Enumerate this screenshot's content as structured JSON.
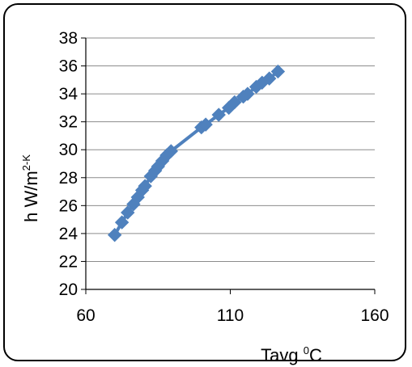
{
  "chart_data": {
    "type": "line",
    "title": "",
    "xlabel": {
      "base": "Tavg ",
      "sup": "0",
      "tail": "C"
    },
    "ylabel": {
      "base": "h W/m",
      "sup": "2-K"
    },
    "xlim": [
      60,
      160
    ],
    "ylim": [
      20,
      38
    ],
    "x_ticks": [
      "60",
      "110",
      "160"
    ],
    "y_ticks": [
      "20",
      "22",
      "24",
      "26",
      "28",
      "30",
      "32",
      "34",
      "36",
      "38"
    ],
    "grid": "horizontal",
    "legend": "none",
    "series": [
      {
        "color": "#4f81bd",
        "marker": "diamond",
        "points": [
          [
            70,
            23.9
          ],
          [
            72.5,
            24.8
          ],
          [
            74.5,
            25.5
          ],
          [
            76.5,
            26.1
          ],
          [
            78,
            26.6
          ],
          [
            79.5,
            27.1
          ],
          [
            80.5,
            27.4
          ],
          [
            82.5,
            28.1
          ],
          [
            84,
            28.5
          ],
          [
            85,
            28.8
          ],
          [
            86.5,
            29.2
          ],
          [
            88,
            29.6
          ],
          [
            89.5,
            29.9
          ],
          [
            100,
            31.6
          ],
          [
            101.5,
            31.8
          ],
          [
            106,
            32.5
          ],
          [
            109.5,
            33.0
          ],
          [
            111.5,
            33.4
          ],
          [
            114.5,
            33.8
          ],
          [
            116,
            34.0
          ],
          [
            119,
            34.5
          ],
          [
            121,
            34.8
          ],
          [
            123.5,
            35.1
          ],
          [
            126.5,
            35.6
          ]
        ]
      }
    ]
  }
}
